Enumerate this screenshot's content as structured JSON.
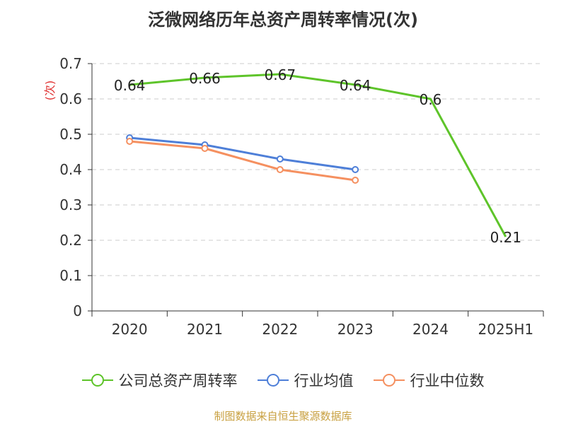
{
  "title": "泛微网络历年总资产周转率情况(次)",
  "source": "制图数据来自恒生聚源数据库",
  "chart_data": {
    "type": "line",
    "title": "泛微网络历年总资产周转率情况(次)",
    "ylabel": "(次)",
    "xlabel": "",
    "categories": [
      "2020",
      "2021",
      "2022",
      "2023",
      "2024",
      "2025H1"
    ],
    "ylim": [
      0,
      0.7
    ],
    "yticks": [
      "0",
      "0.1",
      "0.2",
      "0.3",
      "0.4",
      "0.5",
      "0.6",
      "0.7"
    ],
    "grid": true,
    "legend_position": "bottom",
    "series": [
      {
        "name": "公司总资产周转率",
        "color": "#5ec42a",
        "values": [
          0.64,
          0.66,
          0.67,
          0.64,
          0.6,
          0.21
        ],
        "labels": [
          "0.64",
          "0.66",
          "0.67",
          "0.64",
          "0.6",
          "0.21"
        ],
        "show_labels": true,
        "show_markers": false
      },
      {
        "name": "行业均值",
        "color": "#4e7fd8",
        "values": [
          0.49,
          0.47,
          0.43,
          0.4,
          null,
          null
        ],
        "show_labels": false,
        "show_markers": true
      },
      {
        "name": "行业中位数",
        "color": "#f59060",
        "values": [
          0.48,
          0.46,
          0.4,
          0.37,
          null,
          null
        ],
        "show_labels": false,
        "show_markers": true
      }
    ]
  }
}
